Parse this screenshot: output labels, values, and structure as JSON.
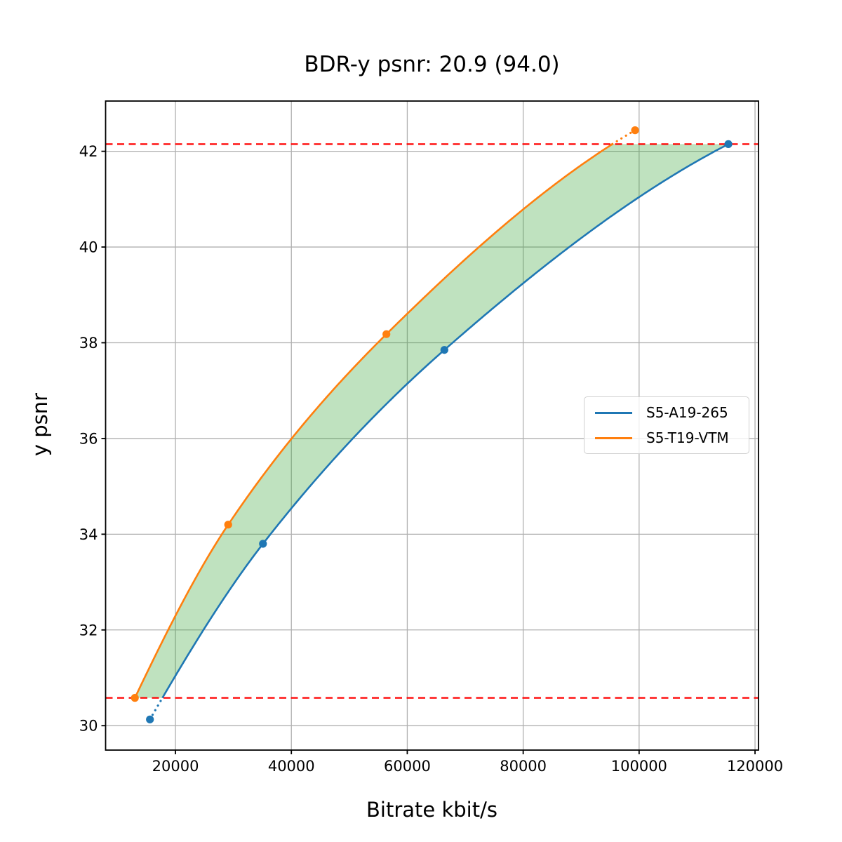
{
  "chart_data": {
    "type": "line",
    "title": "BDR-y psnr: 20.9 (94.0)",
    "xlabel": "Bitrate kbit/s",
    "ylabel": "y psnr",
    "xlim": [
      7950,
      120600
    ],
    "ylim": [
      29.49,
      43.05
    ],
    "xticks": [
      20000,
      40000,
      60000,
      80000,
      100000,
      120000
    ],
    "yticks": [
      30,
      32,
      34,
      36,
      38,
      40,
      42
    ],
    "grid": true,
    "grid_color": "#b0b0b0",
    "legend_position": "center-right",
    "series": [
      {
        "name": "S5-A19-265",
        "color": "#1f77b4",
        "marker": "circle",
        "points": [
          [
            15600,
            30.13
          ],
          [
            35100,
            33.8
          ],
          [
            66400,
            37.85
          ],
          [
            115400,
            42.15
          ]
        ]
      },
      {
        "name": "S5-T19-VTM",
        "color": "#ff7f0e",
        "marker": "circle",
        "points": [
          [
            13000,
            30.58
          ],
          [
            29100,
            34.2
          ],
          [
            56400,
            38.18
          ],
          [
            99300,
            42.44
          ]
        ]
      }
    ],
    "overlap_band": {
      "low": 30.58,
      "high": 42.15,
      "line_color": "#ff0000",
      "line_style": "dashed"
    },
    "fill_between": {
      "color": "#2ca02c",
      "opacity": 0.3
    }
  }
}
